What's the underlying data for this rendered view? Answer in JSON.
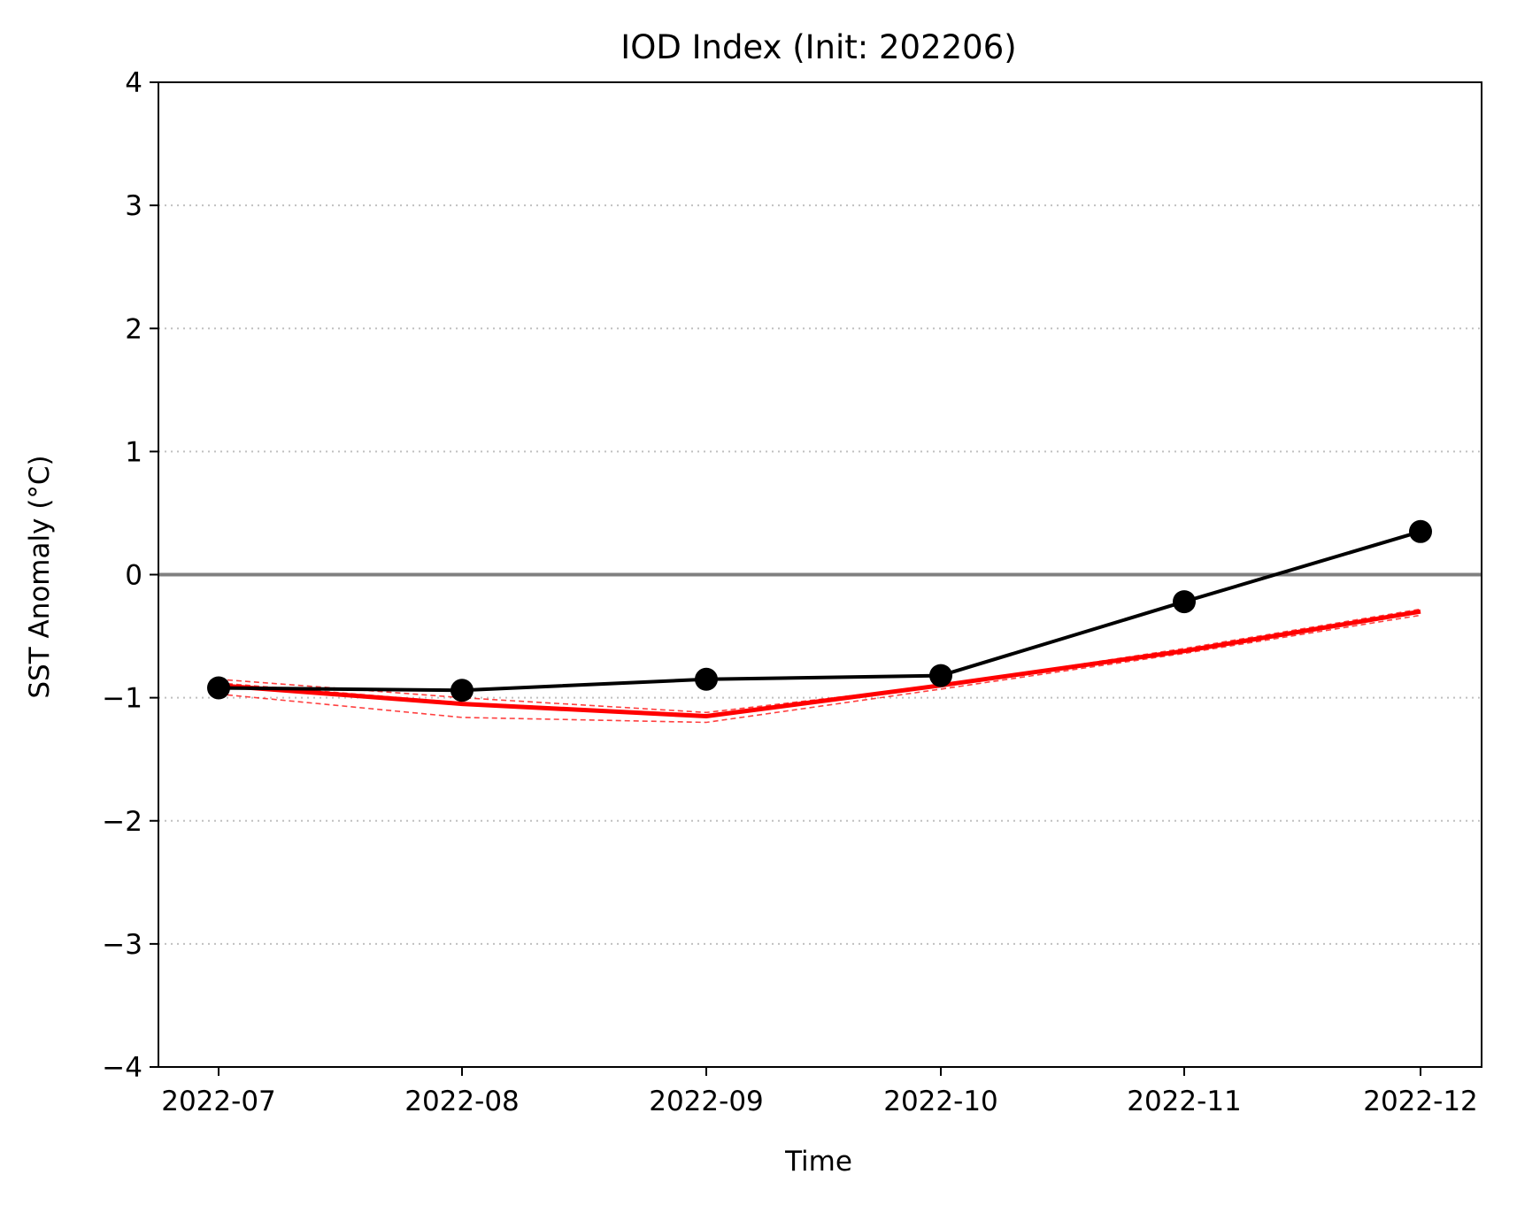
{
  "chart_data": {
    "type": "line",
    "title": "IOD Index (Init: 202206)",
    "xlabel": "Time",
    "ylabel": "SST Anomaly (°C)",
    "categories": [
      "2022-07",
      "2022-08",
      "2022-09",
      "2022-10",
      "2022-11",
      "2022-12"
    ],
    "y_ticks": [
      "4",
      "3",
      "2",
      "1",
      "0",
      "−1",
      "−2",
      "−3",
      "−4"
    ],
    "ylim": [
      -4,
      4
    ],
    "grid": "horizontal dotted",
    "zero_line": 0,
    "series": [
      {
        "role": "observed",
        "color": "#000000",
        "marker": "circle",
        "x": [
          "2022-07",
          "2022-08",
          "2022-09",
          "2022-10",
          "2022-11",
          "2022-12"
        ],
        "values": [
          -0.92,
          -0.94,
          -0.85,
          -0.82,
          -0.22,
          0.35
        ]
      },
      {
        "role": "forecast-mean",
        "color": "#ff0000",
        "style": "solid",
        "x": [
          "2022-07",
          "2022-08",
          "2022-09",
          "2022-10",
          "2022-11",
          "2022-12"
        ],
        "values": [
          -0.9,
          -1.05,
          -1.15,
          -0.9,
          -0.62,
          -0.3
        ]
      },
      {
        "role": "forecast-member",
        "color": "#ff0000",
        "style": "dashed",
        "x": [
          "2022-07",
          "2022-08",
          "2022-09",
          "2022-10",
          "2022-11",
          "2022-12"
        ],
        "values": [
          -0.85,
          -1.0,
          -1.12,
          -0.9,
          -0.6,
          -0.28
        ]
      },
      {
        "role": "forecast-member",
        "color": "#ff0000",
        "style": "dashed",
        "x": [
          "2022-07",
          "2022-08",
          "2022-09",
          "2022-10",
          "2022-11",
          "2022-12"
        ],
        "values": [
          -0.88,
          -1.04,
          -1.14,
          -0.91,
          -0.61,
          -0.3
        ]
      },
      {
        "role": "forecast-member",
        "color": "#ff0000",
        "style": "dashed",
        "x": [
          "2022-07",
          "2022-08",
          "2022-09",
          "2022-10",
          "2022-11",
          "2022-12"
        ],
        "values": [
          -0.97,
          -1.16,
          -1.2,
          -0.93,
          -0.64,
          -0.33
        ]
      }
    ]
  }
}
